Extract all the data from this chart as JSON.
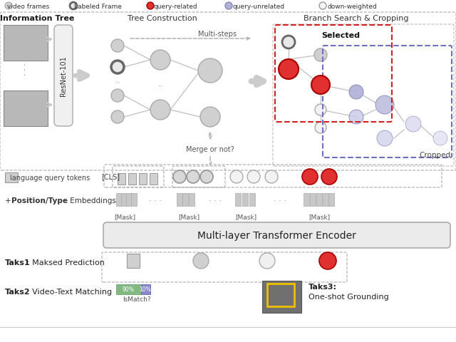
{
  "legend": {
    "video_frames": "video frames",
    "labeled_frame": "Labeled Frame",
    "query_related": "query-related",
    "query_unrelated": "query-unrelated",
    "down_weighted": "down-weighted"
  },
  "section_titles": {
    "info_tree": "Information Tree",
    "tree_construction": "Tree Construction",
    "branch_search": "Branch Search & Cropping"
  },
  "labels": {
    "lang_tokens": "language query tokens",
    "cls": "[CLS]",
    "mask": "[Mask]",
    "transformer": "Multi-layer Transformer Encoder",
    "task1_bold": "Taks1",
    "task1_rest": ": Maksed Prediction",
    "task2_bold": "Taks2",
    "task2_rest": ": Video-Text Matching",
    "task3_bold": "Taks3",
    "task3_rest": "One-shot Grounding",
    "ismatch": "IsMatch?",
    "multi_steps": "Multi-steps",
    "merge_or_not": "Merge or not?",
    "selected": "Selected",
    "cropped": "Cropped",
    "pos_type_plus": "+ ",
    "pos_type_bold": "Position/Type",
    "pos_type_rest": " Embeddings",
    "resnet": "ResNet-101",
    "dots3": "..."
  },
  "colors": {
    "bg": "#ffffff",
    "gray_node": "#d0d0d0",
    "labeled_ring_fill": "#e8e8e8",
    "labeled_ring_edge": "#888888",
    "red_node": "#e03030",
    "blue_node": "#b0b0d8",
    "light_blue_node": "#c8c8e8",
    "white_node": "#f2f2f2",
    "line_gray": "#b0b0b0",
    "arrow_gray": "#c0c0c0",
    "dashed_gray": "#aaaaaa",
    "red_box": "#d02020",
    "blue_box": "#7070c0",
    "transformer_fill": "#ebebeb",
    "transformer_edge": "#aaaaaa",
    "token_sq_fill": "#d0d0d0",
    "token_sq_edge": "#999999",
    "embed_bar_fill": "#c8c8c8",
    "task1_sq_fill": "#d0d0d0",
    "task1_circle_fill": "#d0d0d0",
    "task1_circle_edge": "#aaaaaa",
    "task1_white_fill": "#f0f0f0",
    "task2_green": "#82b882",
    "task2_blue": "#8888c8",
    "task_text": "#222222",
    "section_text": "#333333",
    "label_text": "#444444"
  }
}
